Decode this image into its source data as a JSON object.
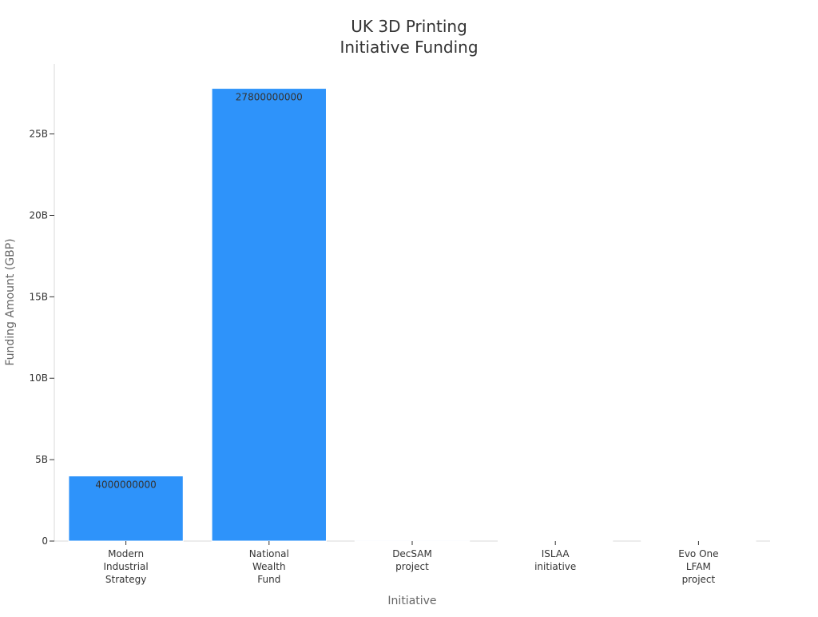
{
  "chart_data": {
    "type": "bar",
    "title": [
      "UK 3D Printing",
      "Initiative Funding"
    ],
    "xlabel": "Initiative",
    "ylabel": "Funding Amount (GBP)",
    "categories": [
      [
        "Modern",
        "Industrial",
        "Strategy"
      ],
      [
        "National",
        "Wealth",
        "Fund"
      ],
      [
        "DecSAM",
        "project"
      ],
      [
        "ISLAA",
        "initiative"
      ],
      [
        "Evo One",
        "LFAM",
        "project"
      ]
    ],
    "values": [
      4000000000,
      27800000000,
      50000000,
      10000000,
      5000000
    ],
    "data_labels": [
      "4000000000",
      "27800000000",
      "",
      "",
      ""
    ],
    "ylim": [
      0,
      29300000000
    ],
    "yticks": [
      0,
      5000000000,
      10000000000,
      15000000000,
      20000000000,
      25000000000
    ],
    "ytick_labels": [
      "0",
      "5B",
      "10B",
      "15B",
      "20B",
      "25B"
    ],
    "grid": false,
    "colors": {
      "bar": "#2e93fa",
      "bar_stroke": "#ffffff",
      "axis": "#d9d9d9",
      "tick": "#333333",
      "title": "#333333",
      "axis_label": "#666666",
      "data_label": "#333333"
    }
  }
}
